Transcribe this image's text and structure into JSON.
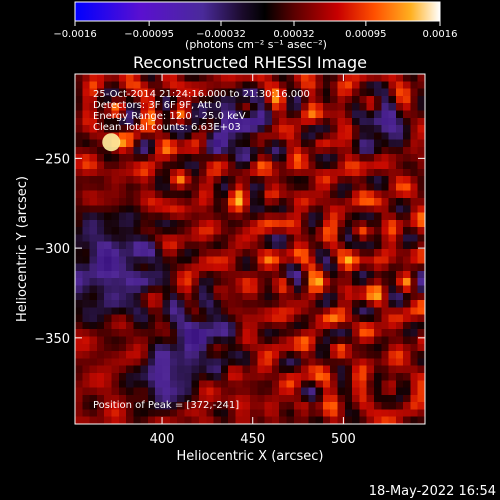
{
  "chart_data": {
    "type": "heatmap",
    "title": "Reconstructed RHESSI Image",
    "xlabel": "Heliocentric X (arcsec)",
    "ylabel": "Heliocentric Y (arcsec)",
    "xlim": [
      352,
      545
    ],
    "ylim": [
      -398,
      -203
    ],
    "xticks": [
      {
        "value": 400,
        "label": "400"
      },
      {
        "value": 450,
        "label": "450"
      },
      {
        "value": 500,
        "label": "500"
      }
    ],
    "yticks": [
      {
        "value": -250,
        "label": "−250"
      },
      {
        "value": -300,
        "label": "−300"
      },
      {
        "value": -350,
        "label": "−350"
      }
    ],
    "colorbar": {
      "range": [
        -0.0016,
        0.0016
      ],
      "ticks": [
        {
          "value": -0.0016,
          "label": "−0.0016"
        },
        {
          "value": -0.00095,
          "label": "−0.00095"
        },
        {
          "value": -0.00032,
          "label": "−0.00032"
        },
        {
          "value": 0.00032,
          "label": "0.00032"
        },
        {
          "value": 0.00095,
          "label": "0.00095"
        },
        {
          "value": 0.0016,
          "label": "0.0016"
        }
      ],
      "units_label": "(photons cm⁻² s⁻¹ asec⁻²)"
    },
    "annotations": [
      "25-Oct-2014 21:24:16.000 to 21:30:16.000",
      "Detectors: 3F 6F 9F, Att 0",
      "Energy Range: 12.0 - 25.0 keV",
      "Clean     Total counts: 6.63E+03"
    ],
    "peak_label": "Position of Peak = [372,-241]",
    "peak": [
      372,
      -241
    ],
    "grid": false
  },
  "footer": {
    "timestamp": "18-May-2022 16:54"
  }
}
